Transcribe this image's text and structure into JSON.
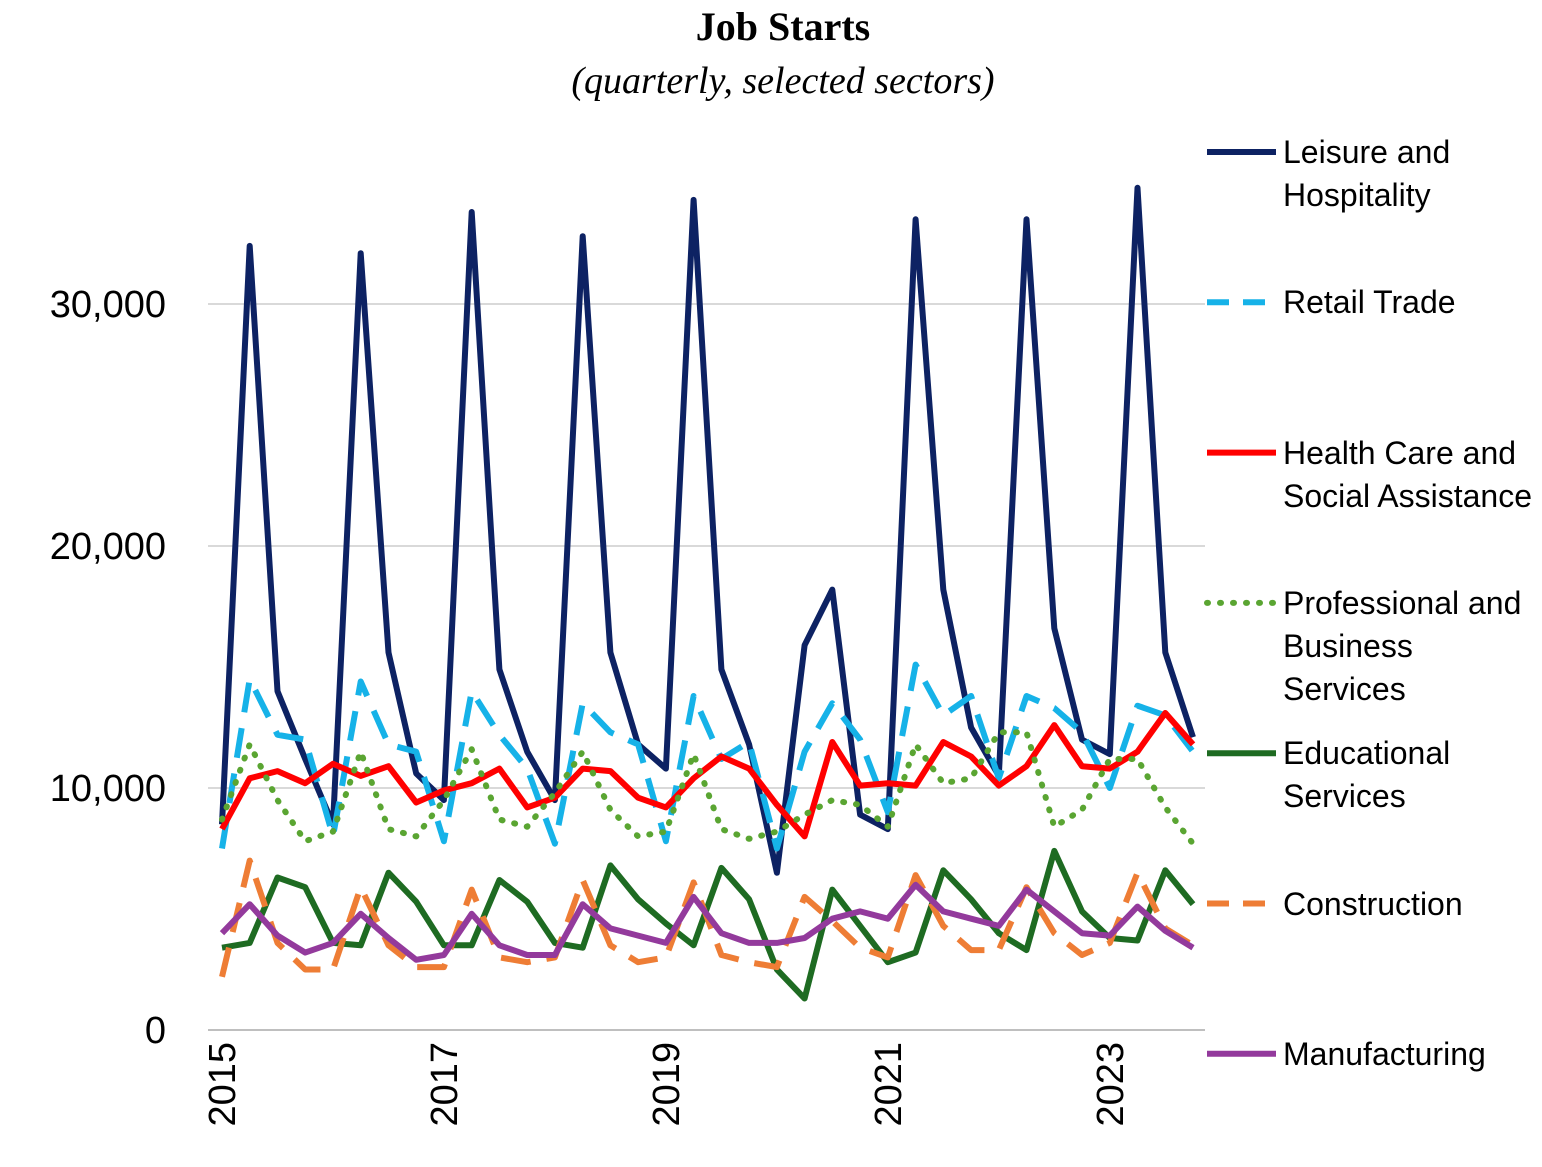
{
  "chart_data": {
    "type": "line",
    "title": "Job Starts",
    "subtitle": "(quarterly, selected sectors)",
    "categories": [
      "2015",
      null,
      null,
      null,
      null,
      null,
      null,
      null,
      "2017",
      null,
      null,
      null,
      null,
      null,
      null,
      null,
      "2019",
      null,
      null,
      null,
      null,
      null,
      null,
      null,
      "2021",
      null,
      null,
      null,
      null,
      null,
      null,
      null,
      "2023",
      null,
      null,
      null
    ],
    "ylim": [
      0,
      35000
    ],
    "yticks": [
      0,
      {
        "value": 10000,
        "label": "10,000"
      },
      {
        "value": 20000,
        "label": "20,000"
      },
      {
        "value": 30000,
        "label": "30,000"
      }
    ],
    "grid": true,
    "legend": "right",
    "series": [
      {
        "name": "Leisure and Hospitality",
        "color": "#0d2263",
        "dash": "solid",
        "values": [
          8500,
          32400,
          14000,
          11200,
          8500,
          32100,
          15600,
          10600,
          9500,
          33800,
          14900,
          11500,
          9500,
          32800,
          15600,
          11800,
          10800,
          34300,
          14900,
          11800,
          6500,
          15900,
          18200,
          8900,
          8300,
          33500,
          18200,
          12500,
          10500,
          33500,
          16600,
          12000,
          11400,
          34800,
          15600,
          12100
        ]
      },
      {
        "name": "Retail Trade",
        "color": "#16b2e8",
        "dash": "dashed",
        "values": [
          7500,
          14500,
          12200,
          12000,
          8000,
          14400,
          11800,
          11500,
          7800,
          14000,
          12200,
          10800,
          7700,
          13500,
          12300,
          11800,
          7800,
          13800,
          11200,
          11900,
          7500,
          11500,
          13500,
          12000,
          9000,
          15100,
          13000,
          13800,
          10400,
          13800,
          13300,
          12300,
          10000,
          13400,
          13000,
          11500
        ]
      },
      {
        "name": "Health Care and Social Assistance",
        "color": "#ff0000",
        "dash": "solid",
        "values": [
          8300,
          10400,
          10700,
          10200,
          11000,
          10500,
          10900,
          9400,
          9900,
          10200,
          10800,
          9200,
          9600,
          10800,
          10700,
          9600,
          9200,
          10400,
          11300,
          10800,
          9300,
          8000,
          11900,
          10100,
          10200,
          10100,
          11900,
          11300,
          10100,
          10900,
          12600,
          10900,
          10800,
          11500,
          13100,
          11800
        ]
      },
      {
        "name": "Professional and Business Services",
        "color": "#5aa532",
        "dash": "dotted",
        "values": [
          8700,
          11800,
          9500,
          7800,
          8200,
          11500,
          8300,
          8000,
          9500,
          11600,
          8700,
          8400,
          9800,
          11500,
          9100,
          8000,
          8200,
          11400,
          8300,
          7900,
          8200,
          8900,
          9500,
          9300,
          8400,
          11800,
          10200,
          10400,
          12300,
          12300,
          8400,
          9100,
          11200,
          11200,
          9200,
          7700
        ]
      },
      {
        "name": "Educational Services",
        "color": "#1e6b22",
        "dash": "solid",
        "values": [
          3400,
          3600,
          6300,
          5900,
          3600,
          3500,
          6500,
          5300,
          3500,
          3500,
          6200,
          5300,
          3600,
          3400,
          6800,
          5400,
          4400,
          3500,
          6700,
          5400,
          2500,
          1300,
          5800,
          4300,
          2800,
          3200,
          6600,
          5400,
          4000,
          3300,
          7400,
          4900,
          3800,
          3700,
          6600,
          5200
        ]
      },
      {
        "name": "Construction",
        "color": "#ee7d35",
        "dash": "dashed",
        "values": [
          2200,
          7000,
          3600,
          2500,
          2500,
          5900,
          3500,
          2600,
          2600,
          5800,
          3000,
          2800,
          3000,
          6200,
          3500,
          2800,
          3000,
          6100,
          3100,
          2800,
          2600,
          5500,
          4500,
          3400,
          3000,
          6400,
          4300,
          3300,
          3300,
          5900,
          4000,
          3100,
          3600,
          6500,
          4200,
          3500
        ]
      },
      {
        "name": "Manufacturing",
        "color": "#933a9c",
        "dash": "solid",
        "values": [
          4000,
          5200,
          3900,
          3200,
          3600,
          4800,
          3800,
          2900,
          3100,
          4800,
          3500,
          3100,
          3100,
          5200,
          4200,
          3900,
          3600,
          5500,
          4000,
          3600,
          3600,
          3800,
          4600,
          4900,
          4600,
          6000,
          4900,
          4600,
          4300,
          5800,
          4900,
          4000,
          3900,
          5100,
          4100,
          3400
        ]
      }
    ]
  }
}
